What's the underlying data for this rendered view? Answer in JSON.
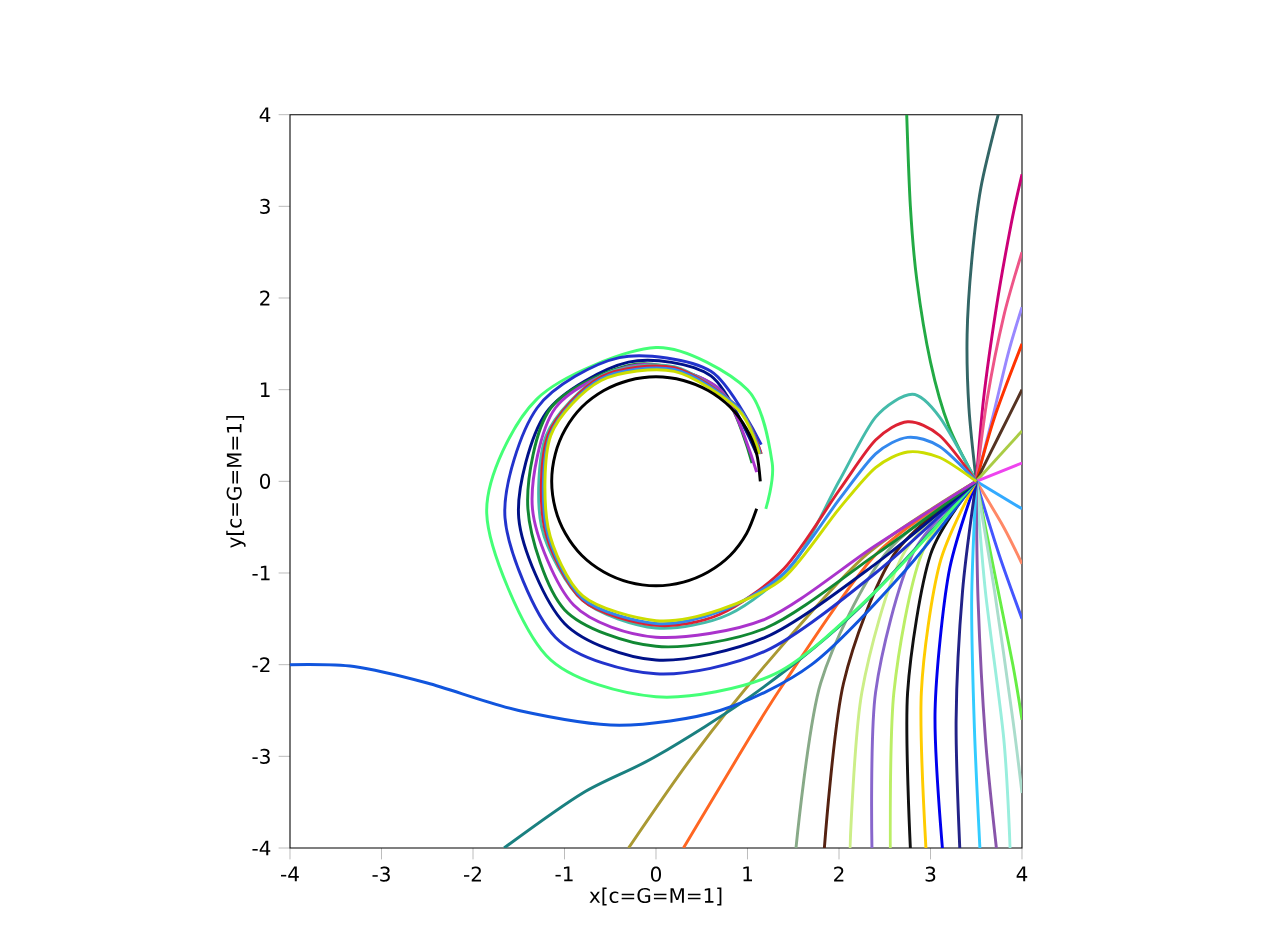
{
  "chart_data": {
    "type": "line",
    "xlabel": "x[c=G=M=1]",
    "ylabel": "y[c=G=M=1]",
    "xlim": [
      -4,
      4
    ],
    "ylim": [
      -4,
      4
    ],
    "xticks": [
      -4,
      -3,
      -2,
      -1,
      0,
      1,
      2,
      3,
      4
    ],
    "yticks": [
      -4,
      -3,
      -2,
      -1,
      0,
      1,
      2,
      3,
      4
    ],
    "marker": "none",
    "line_style": "solid",
    "series": [
      {
        "color": "#22aa44",
        "x": [
          3.5,
          3.2,
          3.0,
          2.85,
          2.78,
          2.74
        ],
        "values": [
          0,
          0.6,
          1.3,
          2.2,
          3.0,
          4
        ]
      },
      {
        "color": "#336666",
        "x": [
          3.5,
          3.42,
          3.4,
          3.45,
          3.55,
          3.74
        ],
        "values": [
          0,
          0.8,
          1.6,
          2.4,
          3.2,
          4
        ]
      },
      {
        "color": "#cc0077",
        "x": [
          3.5,
          3.58,
          3.72,
          3.88,
          4
        ],
        "values": [
          0,
          0.9,
          1.9,
          2.8,
          3.35
        ]
      },
      {
        "color": "#ee5588",
        "x": [
          3.5,
          3.62,
          3.8,
          4
        ],
        "values": [
          0,
          0.9,
          1.8,
          2.5
        ]
      },
      {
        "color": "#9988ff",
        "x": [
          3.5,
          3.68,
          3.85,
          4
        ],
        "values": [
          0,
          0.7,
          1.4,
          1.9
        ]
      },
      {
        "color": "#ff3300",
        "x": [
          3.5,
          3.7,
          4
        ],
        "values": [
          0,
          0.7,
          1.5
        ]
      },
      {
        "color": "#553322",
        "x": [
          3.5,
          3.75,
          4
        ],
        "values": [
          0,
          0.5,
          1.0
        ]
      },
      {
        "color": "#aacc44",
        "x": [
          3.5,
          4
        ],
        "values": [
          0,
          0.55
        ]
      },
      {
        "color": "#ee44ee",
        "x": [
          3.5,
          4
        ],
        "values": [
          0,
          0.2
        ]
      },
      {
        "color": "#33aaff",
        "x": [
          3.5,
          4
        ],
        "values": [
          0,
          -0.3
        ]
      },
      {
        "color": "#ff8866",
        "x": [
          3.5,
          3.8,
          4
        ],
        "values": [
          0,
          -0.5,
          -0.9
        ]
      },
      {
        "color": "#4455ff",
        "x": [
          3.5,
          3.75,
          4
        ],
        "values": [
          0,
          -0.8,
          -1.5
        ]
      },
      {
        "color": "#66ee44",
        "x": [
          3.5,
          3.7,
          3.9,
          4
        ],
        "values": [
          0,
          -1,
          -2,
          -2.6
        ]
      },
      {
        "color": "#aaddcc",
        "x": [
          3.5,
          3.7,
          3.9,
          4
        ],
        "values": [
          0,
          -1.2,
          -2.6,
          -3.4
        ]
      },
      {
        "color": "#99eedd",
        "x": [
          3.5,
          3.6,
          3.8,
          3.87
        ],
        "values": [
          0,
          -1.2,
          -2.8,
          -4
        ]
      },
      {
        "color": "#8855aa",
        "x": [
          3.5,
          3.52,
          3.6,
          3.72
        ],
        "values": [
          0,
          -1.3,
          -2.8,
          -4
        ]
      },
      {
        "color": "#33ccff",
        "x": [
          3.5,
          3.45,
          3.48,
          3.54
        ],
        "values": [
          0,
          -1.3,
          -2.7,
          -4
        ]
      },
      {
        "color": "#222288",
        "x": [
          3.5,
          3.35,
          3.28,
          3.32
        ],
        "values": [
          0,
          -1.2,
          -2.6,
          -4
        ]
      },
      {
        "color": "#0000ee",
        "x": [
          3.5,
          3.2,
          3.05,
          3.13
        ],
        "values": [
          0,
          -1,
          -2.5,
          -4
        ]
      },
      {
        "color": "#ffcc00",
        "x": [
          3.5,
          3.1,
          2.9,
          2.95
        ],
        "values": [
          0,
          -0.9,
          -2.3,
          -4
        ]
      },
      {
        "color": "#111111",
        "x": [
          3.5,
          3.0,
          2.75,
          2.78
        ],
        "values": [
          0,
          -0.8,
          -2.3,
          -4
        ]
      },
      {
        "color": "#bbee66",
        "x": [
          3.5,
          2.9,
          2.6,
          2.56
        ],
        "values": [
          0,
          -0.8,
          -2.3,
          -4
        ]
      },
      {
        "color": "#8866cc",
        "x": [
          3.5,
          2.8,
          2.4,
          2.36
        ],
        "values": [
          0,
          -0.8,
          -2.3,
          -4
        ]
      },
      {
        "color": "#ccee88",
        "x": [
          3.5,
          2.7,
          2.25,
          2.12
        ],
        "values": [
          0,
          -0.8,
          -2.3,
          -4
        ]
      },
      {
        "color": "#552211",
        "x": [
          3.5,
          2.6,
          2.05,
          1.84
        ],
        "values": [
          0,
          -0.8,
          -2.2,
          -4
        ]
      },
      {
        "color": "#88aa88",
        "x": [
          3.5,
          2.5,
          1.8,
          1.53
        ],
        "values": [
          0,
          -0.8,
          -2.2,
          -4
        ]
      },
      {
        "color": "#ff6622",
        "x": [
          3.5,
          2.4,
          1.4,
          0.9,
          0.3
        ],
        "values": [
          0,
          -0.8,
          -2.2,
          -3.0,
          -4
        ]
      },
      {
        "color": "#aa9933",
        "x": [
          3.5,
          2.3,
          1.2,
          0.4,
          -0.3
        ],
        "values": [
          0,
          -0.8,
          -2.0,
          -3.0,
          -4
        ]
      },
      {
        "color": "#1a8080",
        "x": [
          3.5,
          2.2,
          1.1,
          0,
          -0.8,
          -1.66
        ],
        "values": [
          0,
          -1.4,
          -2.3,
          -3.0,
          -3.4,
          -4
        ]
      },
      {
        "color": "#1155dd",
        "x": [
          3.5,
          2.7,
          1.7,
          0.7,
          -0.4,
          -1.5,
          -2.5,
          -3.3,
          -4
        ],
        "values": [
          0,
          -1.0,
          -2.0,
          -2.5,
          -2.66,
          -2.5,
          -2.2,
          -2.02,
          -2
        ]
      },
      {
        "color": "#44ff77",
        "x": [
          3.5,
          2.4,
          1.3,
          0,
          -1.2,
          -1.85,
          -1.3,
          0,
          1.0,
          1.27,
          1.2
        ],
        "values": [
          0,
          -1.2,
          -2.1,
          -2.35,
          -1.9,
          -0.35,
          0.9,
          1.46,
          1.0,
          0.2,
          -0.3
        ]
      },
      {
        "color": "#2233cc",
        "x": [
          3.5,
          2.4,
          1.2,
          0,
          -1.1,
          -1.65,
          -1.3,
          -0.4,
          0.6,
          1.15
        ],
        "values": [
          0,
          -1.0,
          -1.85,
          -2.1,
          -1.7,
          -0.4,
          0.8,
          1.35,
          1.2,
          0.4
        ]
      },
      {
        "color": "#001188",
        "x": [
          3.5,
          2.4,
          1.2,
          0,
          -1.0,
          -1.5,
          -1.2,
          -0.3,
          0.6,
          1.1
        ],
        "values": [
          0,
          -0.9,
          -1.7,
          -1.95,
          -1.55,
          -0.4,
          0.75,
          1.3,
          1.15,
          0.3
        ]
      },
      {
        "color": "#118833",
        "x": [
          3.5,
          2.4,
          1.2,
          0,
          -1.0,
          -1.4,
          -1.15,
          -0.2,
          0.7,
          1.05
        ],
        "values": [
          0,
          -0.8,
          -1.6,
          -1.8,
          -1.4,
          -0.3,
          0.8,
          1.28,
          1.0,
          0.2
        ]
      },
      {
        "color": "#aa33cc",
        "x": [
          3.5,
          2.4,
          1.2,
          0,
          -0.9,
          -1.35,
          -1.1,
          -0.2,
          0.7,
          1.1
        ],
        "values": [
          0,
          -0.7,
          -1.5,
          -1.7,
          -1.35,
          -0.3,
          0.8,
          1.27,
          1.0,
          0.1
        ]
      },
      {
        "color": "#44bbaa",
        "x": [
          3.5,
          3.1,
          2.8,
          2.4,
          2.0,
          1.5,
          0.8,
          0,
          -0.8,
          -1.25,
          -1.2,
          -0.6,
          0.2,
          0.9,
          1.15
        ],
        "values": [
          0,
          0.7,
          0.95,
          0.7,
          0,
          -0.9,
          -1.45,
          -1.6,
          -1.3,
          -0.5,
          0.5,
          1.15,
          1.25,
          0.8,
          0.3
        ]
      },
      {
        "color": "#dd2233",
        "x": [
          3.5,
          3.1,
          2.75,
          2.4,
          2.0,
          1.4,
          0.7,
          0,
          -0.8,
          -1.22,
          -1.18,
          -0.6,
          0.2,
          0.9,
          1.15
        ],
        "values": [
          0,
          0.5,
          0.65,
          0.45,
          -0.1,
          -0.95,
          -1.45,
          -1.57,
          -1.3,
          -0.5,
          0.5,
          1.14,
          1.24,
          0.8,
          0.3
        ]
      },
      {
        "color": "#3388ee",
        "x": [
          3.5,
          3.1,
          2.75,
          2.4,
          2.0,
          1.4,
          0.7,
          0,
          -0.8,
          -1.2,
          -1.16,
          -0.6,
          0.2,
          0.9,
          1.14
        ],
        "values": [
          0,
          0.38,
          0.48,
          0.3,
          -0.2,
          -1.0,
          -1.42,
          -1.55,
          -1.28,
          -0.5,
          0.5,
          1.12,
          1.22,
          0.8,
          0.3
        ]
      },
      {
        "color": "#ccdd00",
        "x": [
          3.5,
          3.1,
          2.75,
          2.4,
          2.0,
          1.4,
          0.7,
          0,
          -0.8,
          -1.18,
          -1.15,
          -0.6,
          0.2,
          0.9,
          1.13
        ],
        "values": [
          0,
          0.26,
          0.32,
          0.15,
          -0.3,
          -1.05,
          -1.4,
          -1.52,
          -1.25,
          -0.5,
          0.5,
          1.1,
          1.2,
          0.78,
          0.3
        ]
      },
      {
        "color": "#000000",
        "x": [
          1.14,
          1.1,
          0.99,
          0.81,
          0.57,
          0.3,
          0,
          -0.3,
          -0.57,
          -0.81,
          -0.99,
          -1.1,
          -1.14,
          -1.1,
          -0.99,
          -0.81,
          -0.57,
          -0.3,
          0,
          0.3,
          0.57,
          0.81,
          0.99,
          1.1
        ],
        "values": [
          0,
          0.3,
          0.57,
          0.81,
          0.99,
          1.1,
          1.14,
          1.1,
          0.99,
          0.81,
          0.57,
          0.3,
          0,
          -0.3,
          -0.57,
          -0.81,
          -0.99,
          -1.1,
          -1.14,
          -1.1,
          -0.99,
          -0.81,
          -0.57,
          -0.3
        ]
      }
    ]
  }
}
